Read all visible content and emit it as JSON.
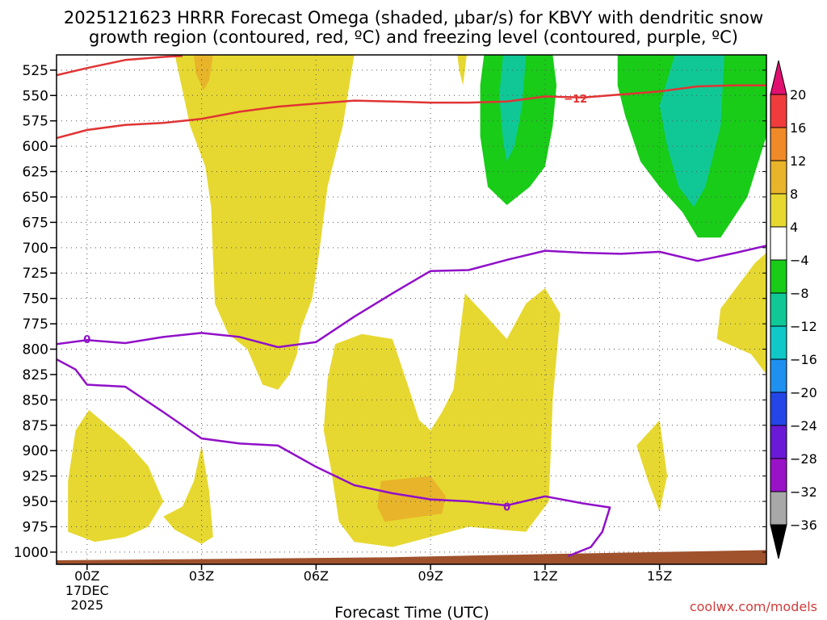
{
  "chart_data": {
    "type": "time-height contour",
    "title_line1": "2025121623 HRRR Forecast Omega (shaded, μbar/s) for KBVY with dendritic snow",
    "title_line2": "growth region (contoured, red, ºC) and freezing level (contoured, purple, ºC)",
    "xlabel": "Forecast Time (UTC)",
    "x_range_hours": [
      -0.8,
      17.8
    ],
    "y_range_mb": [
      510,
      1012
    ],
    "y_ticks": [
      "525",
      "550",
      "575",
      "600",
      "625",
      "650",
      "675",
      "700",
      "725",
      "750",
      "775",
      "800",
      "825",
      "850",
      "875",
      "900",
      "925",
      "950",
      "975",
      "1000"
    ],
    "x_ticks": [
      {
        "h": 0,
        "label": "00Z",
        "date1": "17DEC",
        "date2": "2025"
      },
      {
        "h": 3,
        "label": "03Z"
      },
      {
        "h": 6,
        "label": "06Z"
      },
      {
        "h": 9,
        "label": "09Z"
      },
      {
        "h": 12,
        "label": "12Z"
      },
      {
        "h": 15,
        "label": "15Z"
      }
    ],
    "colorbar": {
      "levels": [
        "20",
        "16",
        "12",
        "8",
        "4",
        "−4",
        "−8",
        "−12",
        "−16",
        "−20",
        "−24",
        "−28",
        "−32",
        "−36"
      ],
      "colors": [
        "#e01070",
        "#f03c3c",
        "#f08a28",
        "#e8b42a",
        "#e6d830",
        "#ffffff",
        "#18cc18",
        "#10c896",
        "#10c8c8",
        "#1e90f0",
        "#2446e6",
        "#6a1ad6",
        "#9a12c8",
        "#a8a8a8",
        "#000000"
      ]
    },
    "contour_labels": [
      {
        "text": "−12",
        "color": "#e03434",
        "h": 12.8,
        "mb": 553
      },
      {
        "text": "0",
        "color": "#9010c8",
        "h": 0,
        "mb": 790
      },
      {
        "text": "0",
        "color": "#9010c8",
        "h": 11,
        "mb": 955
      }
    ],
    "shaded": [
      {
        "level": "4 to 8",
        "color": "#e6d830",
        "pts": [
          [
            2.3,
            510
          ],
          [
            7.0,
            510
          ],
          [
            6.7,
            580
          ],
          [
            6.3,
            640
          ],
          [
            6.1,
            700
          ],
          [
            5.9,
            750
          ],
          [
            5.6,
            780
          ],
          [
            5.5,
            805
          ],
          [
            5.3,
            825
          ],
          [
            5.0,
            840
          ],
          [
            4.6,
            835
          ],
          [
            4.2,
            800
          ],
          [
            3.7,
            785
          ],
          [
            3.35,
            755
          ],
          [
            3.3,
            710
          ],
          [
            3.25,
            660
          ],
          [
            3.1,
            620
          ],
          [
            2.7,
            580
          ]
        ]
      },
      {
        "level": "4 to 8",
        "color": "#e6d830",
        "pts": [
          [
            5.0,
            510
          ],
          [
            5.2,
            510
          ],
          [
            5.1,
            530
          ],
          [
            5.0,
            520
          ]
        ]
      },
      {
        "level": "4 to 8",
        "color": "#e6d830",
        "pts": [
          [
            9.7,
            510
          ],
          [
            9.95,
            510
          ],
          [
            9.85,
            540
          ],
          [
            9.75,
            525
          ]
        ]
      },
      {
        "level": "4 to 8",
        "color": "#e6d830",
        "pts": [
          [
            0.05,
            860
          ],
          [
            1.0,
            890
          ],
          [
            1.6,
            915
          ],
          [
            2.0,
            950
          ],
          [
            1.6,
            975
          ],
          [
            1.0,
            985
          ],
          [
            0.2,
            990
          ],
          [
            -0.5,
            980
          ],
          [
            -0.5,
            930
          ],
          [
            -0.3,
            880
          ]
        ]
      },
      {
        "level": "4 to 8",
        "color": "#e6d830",
        "pts": [
          [
            3.0,
            895
          ],
          [
            2.8,
            930
          ],
          [
            2.5,
            955
          ],
          [
            2.0,
            965
          ],
          [
            2.3,
            978
          ],
          [
            3.0,
            992
          ],
          [
            3.3,
            985
          ],
          [
            3.2,
            940
          ]
        ]
      },
      {
        "level": "4 to 8",
        "color": "#e6d830",
        "pts": [
          [
            6.3,
            830
          ],
          [
            6.5,
            795
          ],
          [
            7.2,
            785
          ],
          [
            8.0,
            790
          ],
          [
            8.4,
            835
          ],
          [
            8.7,
            870
          ],
          [
            9.0,
            880
          ],
          [
            9.3,
            862
          ],
          [
            9.6,
            840
          ],
          [
            9.8,
            775
          ],
          [
            9.9,
            745
          ],
          [
            10.4,
            765
          ],
          [
            11.0,
            790
          ],
          [
            11.5,
            755
          ],
          [
            12.0,
            740
          ],
          [
            12.4,
            765
          ],
          [
            12.2,
            850
          ],
          [
            12.1,
            950
          ],
          [
            11.5,
            980
          ],
          [
            10.0,
            975
          ],
          [
            8.0,
            995
          ],
          [
            7.0,
            990
          ],
          [
            6.6,
            970
          ],
          [
            6.4,
            920
          ],
          [
            6.2,
            880
          ]
        ]
      },
      {
        "level": "4 to 8",
        "color": "#e6d830",
        "pts": [
          [
            16.6,
            760
          ],
          [
            17.5,
            715
          ],
          [
            17.8,
            705
          ],
          [
            17.8,
            825
          ],
          [
            17.4,
            805
          ],
          [
            16.8,
            795
          ],
          [
            16.5,
            790
          ]
        ]
      },
      {
        "level": "4 to 8",
        "color": "#e6d830",
        "pts": [
          [
            15.0,
            870
          ],
          [
            15.2,
            925
          ],
          [
            15.0,
            960
          ],
          [
            14.7,
            930
          ],
          [
            14.4,
            895
          ]
        ]
      },
      {
        "level": "8 to 12",
        "color": "#e8b42a",
        "pts": [
          [
            7.7,
            930
          ],
          [
            9.0,
            925
          ],
          [
            9.4,
            945
          ],
          [
            9.3,
            962
          ],
          [
            7.8,
            970
          ],
          [
            7.6,
            955
          ]
        ]
      },
      {
        "level": "8 to 12",
        "color": "#e8b42a",
        "pts": [
          [
            2.8,
            510
          ],
          [
            3.3,
            510
          ],
          [
            3.2,
            535
          ],
          [
            3.05,
            545
          ],
          [
            2.85,
            528
          ]
        ]
      },
      {
        "level": "-4 to -8",
        "color": "#18cc18",
        "pts": [
          [
            10.4,
            510
          ],
          [
            12.2,
            510
          ],
          [
            12.3,
            540
          ],
          [
            12.2,
            580
          ],
          [
            12.0,
            620
          ],
          [
            11.6,
            640
          ],
          [
            11.0,
            658
          ],
          [
            10.5,
            640
          ],
          [
            10.3,
            590
          ],
          [
            10.3,
            540
          ]
        ]
      },
      {
        "level": "-4 to -8",
        "color": "#18cc18",
        "pts": [
          [
            13.9,
            510
          ],
          [
            17.8,
            510
          ],
          [
            17.8,
            590
          ],
          [
            17.3,
            650
          ],
          [
            16.6,
            690
          ],
          [
            16.0,
            690
          ],
          [
            15.6,
            665
          ],
          [
            15.0,
            640
          ],
          [
            14.5,
            615
          ],
          [
            14.1,
            570
          ],
          [
            13.9,
            540
          ]
        ]
      },
      {
        "level": "-8 to -12",
        "color": "#10c896",
        "pts": [
          [
            10.9,
            510
          ],
          [
            11.5,
            510
          ],
          [
            11.4,
            560
          ],
          [
            11.2,
            600
          ],
          [
            11.0,
            615
          ],
          [
            10.9,
            595
          ],
          [
            10.8,
            550
          ]
        ]
      },
      {
        "level": "-8 to -12",
        "color": "#10c896",
        "pts": [
          [
            15.4,
            510
          ],
          [
            16.7,
            510
          ],
          [
            16.6,
            580
          ],
          [
            16.2,
            640
          ],
          [
            15.9,
            660
          ],
          [
            15.5,
            640
          ],
          [
            15.2,
            600
          ],
          [
            15.0,
            560
          ]
        ]
      }
    ],
    "lines": [
      {
        "name": "red-minus12-upper",
        "color": "#e03434",
        "pts": [
          [
            -0.8,
            530
          ],
          [
            0,
            523
          ],
          [
            1,
            515
          ],
          [
            2,
            512
          ],
          [
            2.5,
            511
          ]
        ]
      },
      {
        "name": "red-minus12-lower",
        "color": "#e03434",
        "pts": [
          [
            -0.8,
            592
          ],
          [
            0,
            584
          ],
          [
            1,
            579
          ],
          [
            2,
            577
          ],
          [
            3,
            573
          ],
          [
            4,
            566
          ],
          [
            5,
            561
          ],
          [
            6,
            558
          ],
          [
            7,
            555
          ],
          [
            8,
            556
          ],
          [
            9,
            557
          ],
          [
            10,
            557
          ],
          [
            11,
            556
          ],
          [
            12,
            551
          ],
          [
            13,
            552
          ],
          [
            14,
            549
          ],
          [
            15,
            546
          ],
          [
            16,
            541
          ],
          [
            17,
            540
          ],
          [
            17.8,
            540
          ]
        ]
      },
      {
        "name": "purple-0-freezing",
        "color": "#9010c8",
        "pts": [
          [
            -0.8,
            795
          ],
          [
            0,
            791
          ],
          [
            1,
            794
          ],
          [
            2,
            788
          ],
          [
            3,
            784
          ],
          [
            4,
            788
          ],
          [
            5,
            798
          ],
          [
            6,
            793
          ],
          [
            7,
            768
          ],
          [
            8,
            745
          ],
          [
            9,
            723
          ],
          [
            10,
            722
          ],
          [
            11,
            712
          ],
          [
            12,
            703
          ],
          [
            13,
            705
          ],
          [
            14,
            706
          ],
          [
            15,
            704
          ],
          [
            16,
            713
          ],
          [
            17,
            705
          ],
          [
            17.8,
            698
          ]
        ]
      },
      {
        "name": "purple-0-lower",
        "color": "#9010c8",
        "pts": [
          [
            -0.8,
            810
          ],
          [
            -0.3,
            820
          ],
          [
            0,
            835
          ],
          [
            1,
            837
          ],
          [
            2,
            862
          ],
          [
            3,
            888
          ],
          [
            4,
            893
          ],
          [
            5,
            895
          ],
          [
            6,
            916
          ],
          [
            7,
            934
          ],
          [
            8,
            942
          ],
          [
            9,
            948
          ],
          [
            10,
            950
          ],
          [
            11,
            954
          ],
          [
            12,
            945
          ],
          [
            13,
            952
          ],
          [
            13.7,
            956
          ],
          [
            13.5,
            980
          ],
          [
            13.2,
            995
          ],
          [
            12.6,
            1004
          ]
        ]
      }
    ],
    "terrain": {
      "color": "#a0522d",
      "pts": [
        [
          -0.8,
          1008
        ],
        [
          4,
          1006.5
        ],
        [
          8,
          1005
        ],
        [
          12,
          1002
        ],
        [
          17.8,
          998
        ]
      ]
    }
  },
  "credit": "coolwx.com/models"
}
